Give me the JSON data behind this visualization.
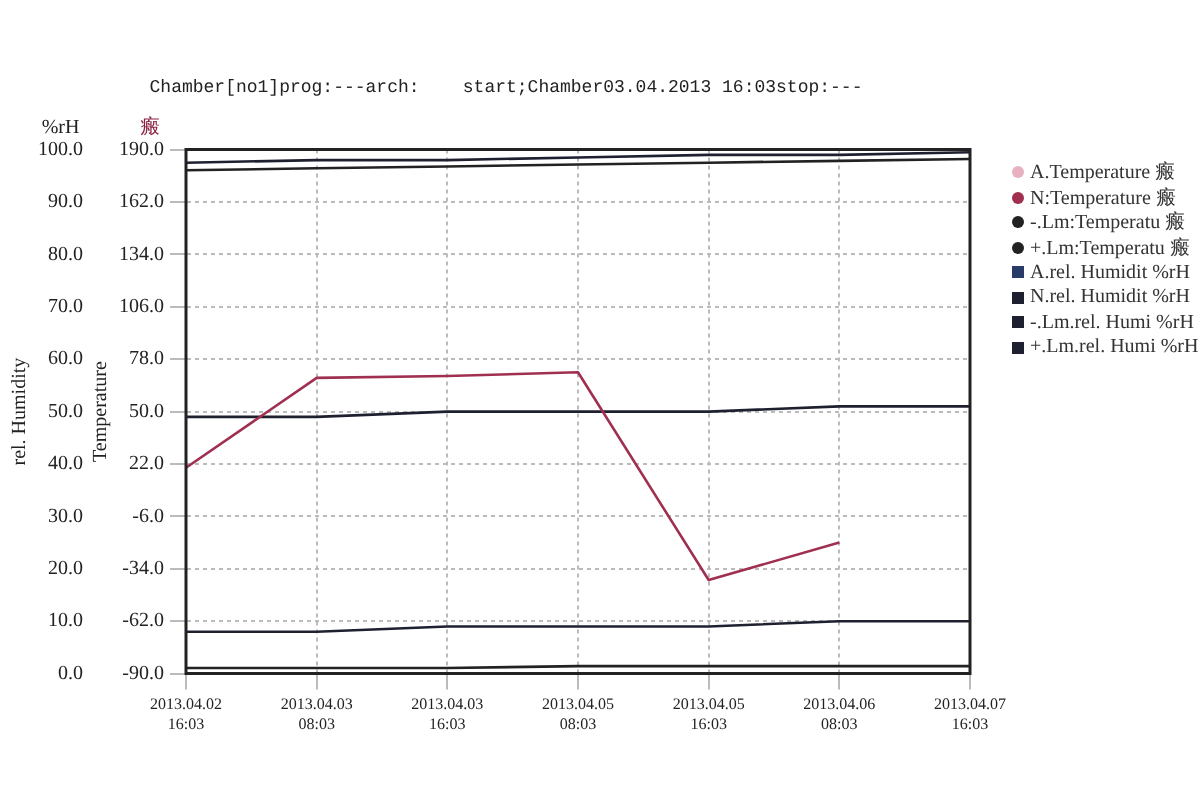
{
  "chart_data": {
    "type": "line",
    "title": "Chamber[no1]prog:---arch:    start;Chamber03.04.2013 16:03stop:---",
    "ylabel": "Temperature",
    "y2label": "rel. Humidity",
    "annotations": [
      "%rH",
      "瘢"
    ],
    "categories": [
      "2013.04.02\n16:03",
      "2013.04.03\n08:03",
      "2013.04.03\n16:03",
      "2013.04.05\n08:03",
      "2013.04.05\n16:03",
      "2013.04.06\n08:03",
      "2013.04.07\n16:03"
    ],
    "ylim": [
      -90,
      190
    ],
    "yticks": [
      {
        "value": -90,
        "label": "-90.0"
      },
      {
        "value": -62,
        "label": "-62.0"
      },
      {
        "value": -34,
        "label": "-34.0"
      },
      {
        "value": -6,
        "label": "-6.0"
      },
      {
        "value": 22,
        "label": "22.0"
      },
      {
        "value": 50,
        "label": "50.0"
      },
      {
        "value": 78,
        "label": "78.0"
      },
      {
        "value": 106,
        "label": "106.0"
      },
      {
        "value": 134,
        "label": "134.0"
      },
      {
        "value": 162,
        "label": "162.0"
      },
      {
        "value": 190,
        "label": "190.0"
      }
    ],
    "y2lim": [
      0,
      100
    ],
    "y2ticks": [
      {
        "value": 0,
        "label": "0.0"
      },
      {
        "value": 10,
        "label": "10.0"
      },
      {
        "value": 20,
        "label": "20.0"
      },
      {
        "value": 30,
        "label": "30.0"
      },
      {
        "value": 40,
        "label": "40.0"
      },
      {
        "value": 50,
        "label": "50.0"
      },
      {
        "value": 60,
        "label": "60.0"
      },
      {
        "value": 70,
        "label": "70.0"
      },
      {
        "value": 80,
        "label": "80.0"
      },
      {
        "value": 90,
        "label": "90.0"
      },
      {
        "value": 100,
        "label": "100.0"
      }
    ],
    "grid": true,
    "legend": "right",
    "series": [
      {
        "name": "A.Temperature 瘢",
        "color": "#e8b0c0",
        "values": [
          null,
          null,
          null,
          null,
          null,
          null,
          null
        ]
      },
      {
        "name": "N:Temperature 瘢",
        "color": "#a03050",
        "values": [
          20,
          68,
          69,
          71,
          -40,
          -20,
          null
        ]
      },
      {
        "name": "-.Lm:Temperatu 瘢",
        "color": "#222222",
        "values": [
          -87,
          -87,
          -87,
          -86,
          -86,
          -86,
          -86
        ]
      },
      {
        "name": "+.Lm:Temperatu 瘢",
        "color": "#222222",
        "values": [
          179,
          180,
          181,
          182,
          183,
          184,
          185
        ]
      },
      {
        "name": "A.rel. Humidit %rH",
        "color": "#2a3a6a",
        "axis": "y2",
        "values": [
          null,
          null,
          null,
          null,
          null,
          null,
          null
        ]
      },
      {
        "name": "N.rel. Humidit %rH",
        "color": "#1e2030",
        "axis": "y2",
        "values": [
          49,
          49,
          50,
          50,
          50,
          51,
          51
        ]
      },
      {
        "name": "-.Lm.rel. Humi %rH",
        "color": "#1e2030",
        "axis": "y2",
        "values": [
          8,
          8,
          9,
          9,
          9,
          10,
          10
        ]
      },
      {
        "name": "+.Lm.rel. Humi %rH",
        "color": "#1e2030",
        "axis": "y2",
        "values": [
          97.5,
          98,
          98,
          98.5,
          99,
          99,
          99.5
        ]
      }
    ]
  }
}
